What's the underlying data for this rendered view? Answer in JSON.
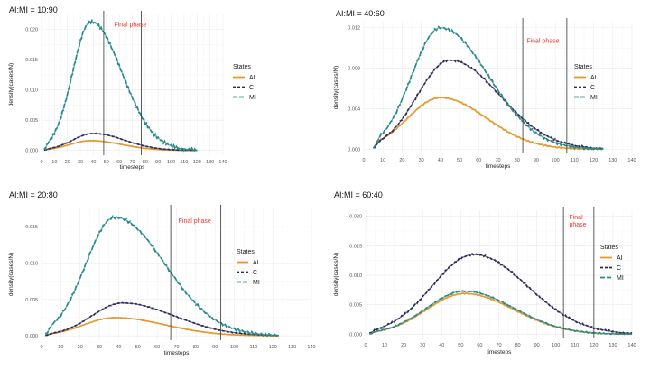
{
  "colors": {
    "AI": "#e69a2e",
    "C": "#2d2b5b",
    "MI": "#2a8a8a",
    "phase_text": "#e8382f"
  },
  "chart_data": [
    {
      "type": "line",
      "title": "AI:MI = 10:90",
      "xlabel": "timesteps",
      "ylabel": "density(cases/N)",
      "xlim": [
        0,
        140
      ],
      "ylim": [
        -0.0008,
        0.0225
      ],
      "xticks": [
        "0",
        "10",
        "20",
        "30",
        "40",
        "50",
        "60",
        "70",
        "80",
        "90",
        "100",
        "110",
        "120",
        "130",
        "140"
      ],
      "yticks": [
        "0.000",
        "0.005",
        "0.010",
        "0.015",
        "0.020"
      ],
      "ytick_values": [
        0,
        0.005,
        0.01,
        0.015,
        0.02
      ],
      "grid": true,
      "vlines": [
        48,
        77
      ],
      "annotation": {
        "text": "Final phase",
        "x": 56,
        "y": 0.0205
      },
      "legend": {
        "title": "States",
        "position": "right",
        "entries": [
          "AI",
          "C",
          "MI"
        ]
      },
      "series": [
        {
          "name": "AI",
          "peak_x": 38,
          "peak": 0.0016,
          "sigma_left": 16,
          "sigma_right": 24,
          "start": 2,
          "end": 120
        },
        {
          "name": "C",
          "peak_x": 40,
          "peak": 0.0028,
          "sigma_left": 16,
          "sigma_right": 24,
          "start": 2,
          "end": 120
        },
        {
          "name": "MI",
          "peak_x": 38,
          "peak": 0.0213,
          "sigma_left": 14,
          "sigma_right": 24,
          "start": 2,
          "end": 120
        }
      ]
    },
    {
      "type": "line",
      "title": "AI:MI = 40:60",
      "xlabel": "timesteps",
      "ylabel": "density(cases/N)",
      "xlim": [
        0,
        140
      ],
      "ylim": [
        -0.0004,
        0.0126
      ],
      "xticks": [
        "0",
        "10",
        "20",
        "30",
        "40",
        "50",
        "60",
        "70",
        "80",
        "90",
        "100",
        "110",
        "120",
        "130",
        "140"
      ],
      "yticks": [
        "0.000",
        "0.004",
        "0.008",
        "0.012"
      ],
      "ytick_values": [
        0,
        0.004,
        0.008,
        0.012
      ],
      "grid": true,
      "vlines": [
        83,
        106
      ],
      "annotation": {
        "text": "Final phase",
        "x": 85,
        "y": 0.0105
      },
      "legend": {
        "title": "States",
        "position": "right",
        "entries": [
          "AI",
          "C",
          "MI"
        ]
      },
      "series": [
        {
          "name": "AI",
          "peak_x": 40,
          "peak": 0.0051,
          "sigma_left": 17,
          "sigma_right": 24,
          "start": 5,
          "end": 125
        },
        {
          "name": "C",
          "peak_x": 45,
          "peak": 0.0088,
          "sigma_left": 17,
          "sigma_right": 26,
          "start": 5,
          "end": 125
        },
        {
          "name": "MI",
          "peak_x": 40,
          "peak": 0.012,
          "sigma_left": 15,
          "sigma_right": 25,
          "start": 5,
          "end": 125
        }
      ]
    },
    {
      "type": "line",
      "title": "AI:MI = 20:80",
      "xlabel": "timesteps",
      "ylabel": "density(cases/N)",
      "xlim": [
        0,
        140
      ],
      "ylim": [
        -0.0006,
        0.0175
      ],
      "xticks": [
        "0",
        "10",
        "20",
        "30",
        "40",
        "50",
        "60",
        "70",
        "80",
        "90",
        "100",
        "110",
        "120",
        "130",
        "140"
      ],
      "yticks": [
        "0.000",
        "0.005",
        "0.010",
        "0.015"
      ],
      "ytick_values": [
        0,
        0.005,
        0.01,
        0.015
      ],
      "grid": true,
      "vlines": [
        67,
        93
      ],
      "annotation": {
        "text": "Final phase",
        "x": 71,
        "y": 0.0155
      },
      "legend": {
        "title": "States",
        "position": "right",
        "entries": [
          "AI",
          "C",
          "MI"
        ]
      },
      "series": [
        {
          "name": "AI",
          "peak_x": 38,
          "peak": 0.0025,
          "sigma_left": 16,
          "sigma_right": 26,
          "start": 2,
          "end": 123
        },
        {
          "name": "C",
          "peak_x": 42,
          "peak": 0.0045,
          "sigma_left": 16,
          "sigma_right": 27,
          "start": 2,
          "end": 123
        },
        {
          "name": "MI",
          "peak_x": 38,
          "peak": 0.0163,
          "sigma_left": 15,
          "sigma_right": 26,
          "start": 2,
          "end": 123
        }
      ]
    },
    {
      "type": "line",
      "title": "AI:MI = 60:40",
      "xlabel": "timesteps",
      "ylabel": "density(cases/N)",
      "xlim": [
        0,
        140
      ],
      "ylim": [
        -0.0007,
        0.021
      ],
      "xticks": [
        "0",
        "10",
        "20",
        "30",
        "40",
        "50",
        "60",
        "70",
        "80",
        "90",
        "100",
        "110",
        "120",
        "130",
        "140"
      ],
      "yticks": [
        "0.000",
        "0.005",
        "0.010",
        "0.015",
        "0.020"
      ],
      "ytick_values": [
        0,
        0.005,
        0.01,
        0.015,
        0.02
      ],
      "grid": true,
      "vlines": [
        104,
        120
      ],
      "annotation": {
        "text": "Final\nphase",
        "x": 107,
        "y": 0.0195
      },
      "legend": {
        "title": "States",
        "position": "right",
        "entries": [
          "AI",
          "C",
          "MI"
        ]
      },
      "series": [
        {
          "name": "AI",
          "peak_x": 52,
          "peak": 0.0069,
          "sigma_left": 20,
          "sigma_right": 26,
          "start": 2,
          "end": 140
        },
        {
          "name": "C",
          "peak_x": 57,
          "peak": 0.0135,
          "sigma_left": 22,
          "sigma_right": 28,
          "start": 2,
          "end": 140
        },
        {
          "name": "MI",
          "peak_x": 52,
          "peak": 0.0073,
          "sigma_left": 20,
          "sigma_right": 26,
          "start": 2,
          "end": 140
        }
      ]
    }
  ]
}
